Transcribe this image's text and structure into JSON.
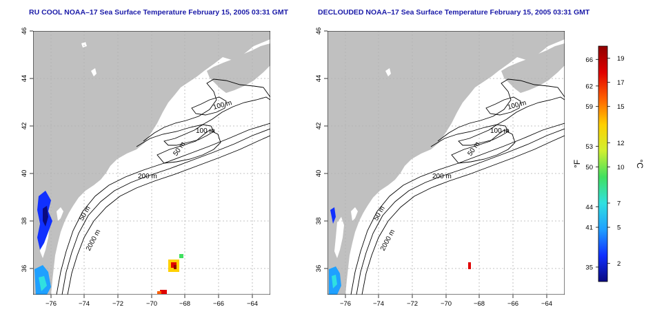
{
  "panels": [
    {
      "title": "RU COOL NOAA–17 Sea Surface Temperature February 15, 2005 03:31 GMT",
      "contour_labels": [
        "100 m",
        "100 m",
        "50 m",
        "200 m",
        "50 m",
        "2000 m"
      ]
    },
    {
      "title": "DECLOUDED NOAA–17 Sea Surface Temperature February 15, 2005 03:31 GMT",
      "contour_labels": [
        "100 m",
        "100 m",
        "50 m",
        "200 m",
        "50 m",
        "2000 m"
      ]
    }
  ],
  "axes": {
    "lon_ticks": [
      "−76",
      "−74",
      "−72",
      "−70",
      "−68",
      "−66",
      "−64"
    ],
    "lat_ticks": [
      "36",
      "38",
      "40",
      "42",
      "44",
      "46"
    ]
  },
  "colorbar": {
    "f_label": "°F",
    "c_label": "°C",
    "f_ticks": [
      {
        "label": "66",
        "c": 18.9
      },
      {
        "label": "62",
        "c": 16.7
      },
      {
        "label": "59",
        "c": 15.0
      },
      {
        "label": "53",
        "c": 11.7
      },
      {
        "label": "50",
        "c": 10.0
      },
      {
        "label": "44",
        "c": 6.7
      },
      {
        "label": "41",
        "c": 5.0
      },
      {
        "label": "35",
        "c": 1.7
      }
    ],
    "c_ticks": [
      {
        "label": "19",
        "c": 19
      },
      {
        "label": "17",
        "c": 17
      },
      {
        "label": "15",
        "c": 15
      },
      {
        "label": "12",
        "c": 12
      },
      {
        "label": "10",
        "c": 10
      },
      {
        "label": "7",
        "c": 7
      },
      {
        "label": "5",
        "c": 5
      },
      {
        "label": "2",
        "c": 2
      }
    ],
    "c_range": [
      0.5,
      20
    ],
    "colors": [
      "#0a0a80",
      "#1030ff",
      "#1fa0ff",
      "#30e0e0",
      "#40e060",
      "#d0f030",
      "#ffd000",
      "#ff6000",
      "#e00000",
      "#900000"
    ]
  },
  "colors": {
    "land": "#c0c0c0",
    "water": "#ffffff",
    "title": "#1a1aa8",
    "grid": "#b0b0b0"
  }
}
